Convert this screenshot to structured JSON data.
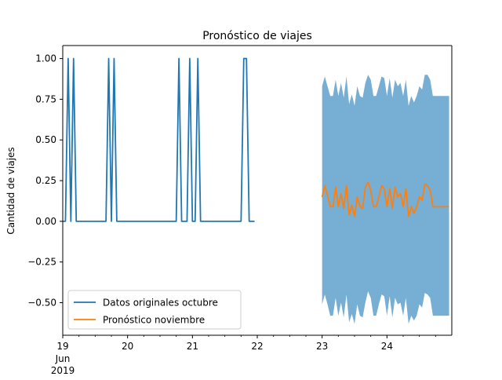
{
  "chart_data": {
    "type": "line",
    "title": "Pronóstico de viajes",
    "xlabel": "",
    "ylabel": "Cantidad de viajes",
    "xlim": [
      "2019-06-19T00:00",
      "2019-06-25T00:00"
    ],
    "ylim": [
      -0.7,
      1.08
    ],
    "grid": false,
    "legend_position": "lower-left",
    "x_ticks": [
      {
        "x": "2019-06-19",
        "label": "19",
        "sublabel": "Jun\n2019"
      },
      {
        "x": "2019-06-20",
        "label": "20"
      },
      {
        "x": "2019-06-21",
        "label": "21"
      },
      {
        "x": "2019-06-22",
        "label": "22"
      },
      {
        "x": "2019-06-23",
        "label": "23"
      },
      {
        "x": "2019-06-24",
        "label": "24"
      }
    ],
    "y_ticks": [
      {
        "value": 1.0,
        "label": "1.00"
      },
      {
        "value": 0.75,
        "label": "0.75"
      },
      {
        "value": 0.5,
        "label": "0.50"
      },
      {
        "value": 0.25,
        "label": "0.25"
      },
      {
        "value": 0.0,
        "label": "0.00"
      },
      {
        "value": -0.25,
        "label": "−0.25"
      },
      {
        "value": -0.5,
        "label": "−0.50"
      }
    ],
    "series": [
      {
        "name": "Datos originales octubre",
        "color": "#1f77b4",
        "x": [
          "2019-06-19T00:00",
          "2019-06-19T01:00",
          "2019-06-19T02:00",
          "2019-06-19T03:00",
          "2019-06-19T04:00",
          "2019-06-19T05:00",
          "2019-06-19T06:00",
          "2019-06-19T07:00",
          "2019-06-19T08:00",
          "2019-06-19T09:00",
          "2019-06-19T10:00",
          "2019-06-19T11:00",
          "2019-06-19T12:00",
          "2019-06-19T13:00",
          "2019-06-19T14:00",
          "2019-06-19T15:00",
          "2019-06-19T16:00",
          "2019-06-19T17:00",
          "2019-06-19T18:00",
          "2019-06-19T19:00",
          "2019-06-19T20:00",
          "2019-06-19T21:00",
          "2019-06-19T22:00",
          "2019-06-19T23:00",
          "2019-06-20T00:00",
          "2019-06-20T01:00",
          "2019-06-20T02:00",
          "2019-06-20T03:00",
          "2019-06-20T04:00",
          "2019-06-20T05:00",
          "2019-06-20T06:00",
          "2019-06-20T07:00",
          "2019-06-20T08:00",
          "2019-06-20T09:00",
          "2019-06-20T10:00",
          "2019-06-20T11:00",
          "2019-06-20T12:00",
          "2019-06-20T13:00",
          "2019-06-20T14:00",
          "2019-06-20T15:00",
          "2019-06-20T16:00",
          "2019-06-20T17:00",
          "2019-06-20T18:00",
          "2019-06-20T19:00",
          "2019-06-20T20:00",
          "2019-06-20T21:00",
          "2019-06-20T22:00",
          "2019-06-20T23:00",
          "2019-06-21T00:00",
          "2019-06-21T01:00",
          "2019-06-21T02:00",
          "2019-06-21T03:00",
          "2019-06-21T04:00",
          "2019-06-21T05:00",
          "2019-06-21T06:00",
          "2019-06-21T07:00",
          "2019-06-21T08:00",
          "2019-06-21T09:00",
          "2019-06-21T10:00",
          "2019-06-21T11:00",
          "2019-06-21T12:00",
          "2019-06-21T13:00",
          "2019-06-21T14:00",
          "2019-06-21T15:00",
          "2019-06-21T16:00",
          "2019-06-21T17:00",
          "2019-06-21T18:00",
          "2019-06-21T19:00",
          "2019-06-21T20:00",
          "2019-06-21T21:00",
          "2019-06-21T22:00",
          "2019-06-21T23:00"
        ],
        "values": [
          0,
          0,
          1,
          0,
          1,
          0,
          0,
          0,
          0,
          0,
          0,
          0,
          0,
          0,
          0,
          0,
          0,
          1,
          0,
          1,
          0,
          0,
          0,
          0,
          0,
          0,
          0,
          0,
          0,
          0,
          0,
          0,
          0,
          0,
          0,
          0,
          0,
          0,
          0,
          0,
          0,
          0,
          0,
          1,
          0,
          0,
          0,
          1,
          0,
          0,
          1,
          0,
          0,
          0,
          0,
          0,
          0,
          0,
          0,
          0,
          0,
          0,
          0,
          0,
          0,
          0,
          0,
          1,
          1,
          0,
          0,
          0
        ]
      },
      {
        "name": "Pronóstico noviembre",
        "color": "#ff7f0e",
        "x": [
          "2019-06-23T00:00",
          "2019-06-23T01:00",
          "2019-06-23T02:00",
          "2019-06-23T03:00",
          "2019-06-23T04:00",
          "2019-06-23T05:00",
          "2019-06-23T06:00",
          "2019-06-23T07:00",
          "2019-06-23T08:00",
          "2019-06-23T09:00",
          "2019-06-23T10:00",
          "2019-06-23T11:00",
          "2019-06-23T12:00",
          "2019-06-23T13:00",
          "2019-06-23T14:00",
          "2019-06-23T15:00",
          "2019-06-23T16:00",
          "2019-06-23T17:00",
          "2019-06-23T18:00",
          "2019-06-23T19:00",
          "2019-06-23T20:00",
          "2019-06-23T21:00",
          "2019-06-23T22:00",
          "2019-06-23T23:00",
          "2019-06-24T00:00",
          "2019-06-24T01:00",
          "2019-06-24T02:00",
          "2019-06-24T03:00",
          "2019-06-24T04:00",
          "2019-06-24T05:00",
          "2019-06-24T06:00",
          "2019-06-24T07:00",
          "2019-06-24T08:00",
          "2019-06-24T09:00",
          "2019-06-24T10:00",
          "2019-06-24T11:00",
          "2019-06-24T12:00",
          "2019-06-24T13:00",
          "2019-06-24T14:00",
          "2019-06-24T15:00",
          "2019-06-24T16:00",
          "2019-06-24T17:00",
          "2019-06-24T18:00",
          "2019-06-24T19:00",
          "2019-06-24T20:00",
          "2019-06-24T21:00",
          "2019-06-24T22:00",
          "2019-06-24T23:00"
        ],
        "values": [
          0.15,
          0.22,
          0.16,
          0.09,
          0.09,
          0.21,
          0.09,
          0.17,
          0.08,
          0.22,
          0.04,
          0.1,
          0.03,
          0.15,
          0.09,
          0.08,
          0.21,
          0.24,
          0.19,
          0.09,
          0.09,
          0.15,
          0.22,
          0.2,
          0.09,
          0.2,
          0.08,
          0.21,
          0.15,
          0.17,
          0.09,
          0.2,
          0.03,
          0.09,
          0.05,
          0.09,
          0.15,
          0.13,
          0.23,
          0.22,
          0.19,
          0.09,
          0.09,
          0.09,
          0.09,
          0.09,
          0.09,
          0.09
        ],
        "interval_upper": [
          0.83,
          0.89,
          0.83,
          0.77,
          0.77,
          0.87,
          0.77,
          0.85,
          0.76,
          0.89,
          0.72,
          0.78,
          0.71,
          0.83,
          0.77,
          0.76,
          0.85,
          0.9,
          0.87,
          0.77,
          0.77,
          0.83,
          0.89,
          0.88,
          0.77,
          0.88,
          0.76,
          0.87,
          0.83,
          0.85,
          0.77,
          0.87,
          0.71,
          0.77,
          0.73,
          0.77,
          0.83,
          0.81,
          0.9,
          0.9,
          0.87,
          0.77,
          0.77,
          0.77,
          0.77,
          0.77,
          0.77,
          0.77
        ],
        "interval_lower": [
          -0.51,
          -0.45,
          -0.51,
          -0.58,
          -0.58,
          -0.47,
          -0.58,
          -0.5,
          -0.59,
          -0.45,
          -0.62,
          -0.57,
          -0.63,
          -0.51,
          -0.58,
          -0.59,
          -0.5,
          -0.43,
          -0.47,
          -0.58,
          -0.58,
          -0.51,
          -0.45,
          -0.46,
          -0.58,
          -0.46,
          -0.59,
          -0.47,
          -0.51,
          -0.5,
          -0.58,
          -0.47,
          -0.63,
          -0.58,
          -0.61,
          -0.58,
          -0.51,
          -0.53,
          -0.44,
          -0.45,
          -0.47,
          -0.58,
          -0.58,
          -0.58,
          -0.58,
          -0.58,
          -0.58,
          -0.58
        ],
        "interval_color": "#77aed3"
      }
    ]
  }
}
